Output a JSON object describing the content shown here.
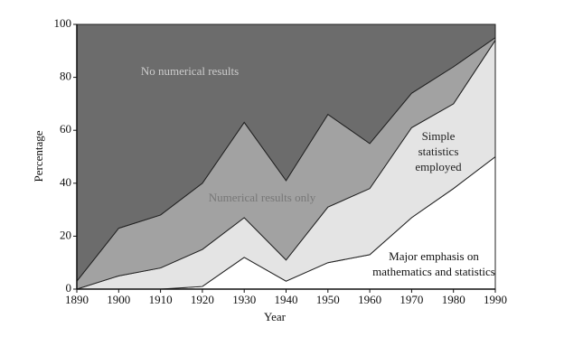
{
  "chart_data": {
    "type": "stacked-area",
    "x_label": "Year",
    "y_label": "Percentage",
    "x": [
      1890,
      1900,
      1910,
      1920,
      1930,
      1940,
      1950,
      1960,
      1970,
      1980,
      1990
    ],
    "series": [
      {
        "name": "Major emphasis on mathematics and statistics",
        "color": "#ffffff",
        "values": [
          0,
          0,
          0,
          1,
          12,
          3,
          10,
          13,
          27,
          38,
          50
        ]
      },
      {
        "name": "Simple statistics employed",
        "color": "#e4e4e4",
        "values": [
          0,
          5,
          8,
          14,
          15,
          8,
          21,
          25,
          34,
          32,
          44
        ]
      },
      {
        "name": "Numerical results only",
        "color": "#a2a2a2",
        "values": [
          3,
          18,
          20,
          25,
          36,
          30,
          35,
          17,
          13,
          14,
          1
        ]
      },
      {
        "name": "No numerical results",
        "color": "#6c6c6c",
        "values": [
          97,
          77,
          72,
          60,
          37,
          59,
          34,
          45,
          26,
          16,
          5
        ]
      }
    ],
    "xlim": [
      1890,
      1990
    ],
    "xticks": [
      1890,
      1900,
      1910,
      1920,
      1930,
      1940,
      1950,
      1960,
      1970,
      1980,
      1990
    ],
    "ylim": [
      0,
      100
    ],
    "yticks": [
      0,
      20,
      40,
      60,
      80,
      100
    ]
  }
}
